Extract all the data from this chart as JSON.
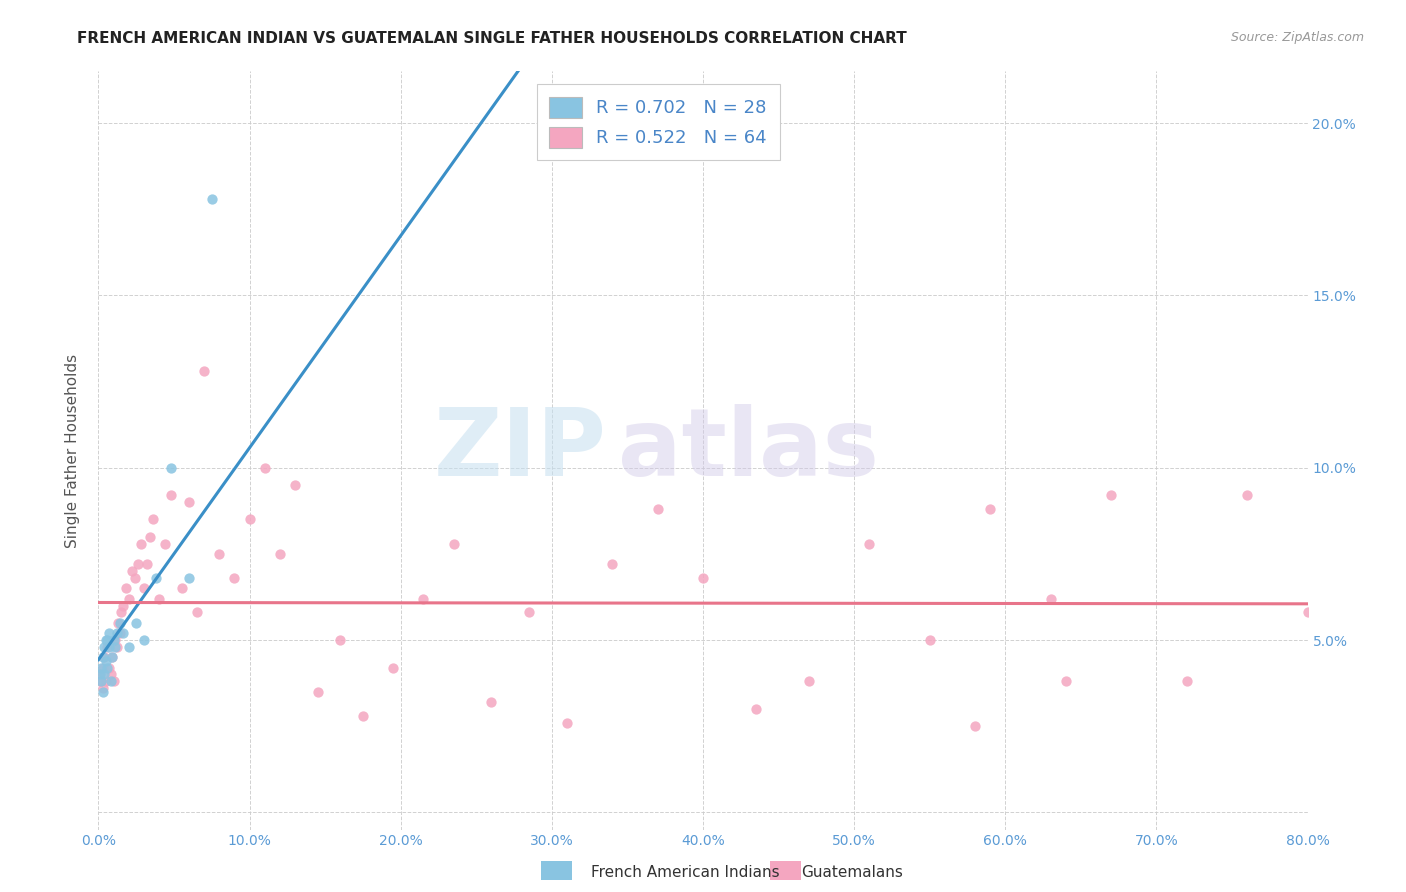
{
  "title": "FRENCH AMERICAN INDIAN VS GUATEMALAN SINGLE FATHER HOUSEHOLDS CORRELATION CHART",
  "source": "Source: ZipAtlas.com",
  "ylabel": "Single Father Households",
  "color_blue": "#89c4e1",
  "color_pink": "#f4a6c0",
  "color_blue_line": "#3a8fc7",
  "color_pink_line": "#e8748a",
  "watermark_zip": "ZIP",
  "watermark_atlas": "atlas",
  "legend_label1": "French American Indians",
  "legend_label2": "Guatemalans",
  "xlim": [
    0.0,
    0.8
  ],
  "ylim": [
    -0.005,
    0.215
  ],
  "xtick_pos": [
    0.0,
    0.1,
    0.2,
    0.3,
    0.4,
    0.5,
    0.6,
    0.7,
    0.8
  ],
  "xtick_labels": [
    "0.0%",
    "10.0%",
    "20.0%",
    "30.0%",
    "40.0%",
    "50.0%",
    "60.0%",
    "70.0%",
    "80.0%"
  ],
  "ytick_pos": [
    0.0,
    0.05,
    0.1,
    0.15,
    0.2
  ],
  "ytick_labels": [
    "",
    "5.0%",
    "10.0%",
    "15.0%",
    "20.0%"
  ],
  "french_x": [
    0.001,
    0.002,
    0.002,
    0.003,
    0.003,
    0.004,
    0.004,
    0.005,
    0.005,
    0.006,
    0.006,
    0.007,
    0.007,
    0.008,
    0.009,
    0.01,
    0.011,
    0.012,
    0.014,
    0.016,
    0.02,
    0.025,
    0.03,
    0.038,
    0.048,
    0.06,
    0.075,
    0.295
  ],
  "french_y": [
    0.04,
    0.038,
    0.042,
    0.035,
    0.045,
    0.04,
    0.048,
    0.05,
    0.044,
    0.042,
    0.05,
    0.048,
    0.052,
    0.038,
    0.045,
    0.05,
    0.048,
    0.052,
    0.055,
    0.052,
    0.048,
    0.055,
    0.05,
    0.068,
    0.1,
    0.068,
    0.178,
    0.205
  ],
  "guatemalan_x": [
    0.001,
    0.002,
    0.003,
    0.003,
    0.004,
    0.005,
    0.006,
    0.007,
    0.008,
    0.009,
    0.01,
    0.011,
    0.012,
    0.013,
    0.014,
    0.015,
    0.016,
    0.018,
    0.02,
    0.022,
    0.024,
    0.026,
    0.028,
    0.03,
    0.032,
    0.034,
    0.036,
    0.04,
    0.044,
    0.048,
    0.055,
    0.06,
    0.065,
    0.07,
    0.08,
    0.09,
    0.1,
    0.11,
    0.12,
    0.13,
    0.145,
    0.16,
    0.175,
    0.195,
    0.215,
    0.235,
    0.26,
    0.285,
    0.31,
    0.34,
    0.37,
    0.4,
    0.435,
    0.47,
    0.51,
    0.55,
    0.59,
    0.63,
    0.67,
    0.72,
    0.76,
    0.8,
    0.64,
    0.58
  ],
  "guatemalan_y": [
    0.04,
    0.038,
    0.042,
    0.036,
    0.045,
    0.038,
    0.048,
    0.042,
    0.04,
    0.045,
    0.038,
    0.05,
    0.048,
    0.055,
    0.052,
    0.058,
    0.06,
    0.065,
    0.062,
    0.07,
    0.068,
    0.072,
    0.078,
    0.065,
    0.072,
    0.08,
    0.085,
    0.062,
    0.078,
    0.092,
    0.065,
    0.09,
    0.058,
    0.128,
    0.075,
    0.068,
    0.085,
    0.1,
    0.075,
    0.095,
    0.035,
    0.05,
    0.028,
    0.042,
    0.062,
    0.078,
    0.032,
    0.058,
    0.026,
    0.072,
    0.088,
    0.068,
    0.03,
    0.038,
    0.078,
    0.05,
    0.088,
    0.062,
    0.092,
    0.038,
    0.092,
    0.058,
    0.038,
    0.025
  ]
}
